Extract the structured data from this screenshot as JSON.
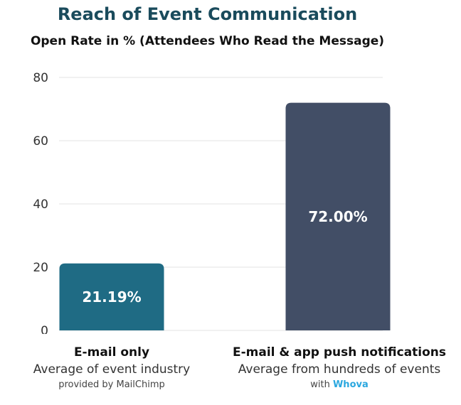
{
  "chart_data": {
    "type": "bar",
    "title": "Reach of Event Communication",
    "subtitle": "Open Rate in % (Attendees Who Read the Message)",
    "xlabel": "",
    "ylabel": "",
    "ylim": [
      0,
      80
    ],
    "yticks": [
      "0",
      "20",
      "40",
      "60",
      "80"
    ],
    "grid": true,
    "categories": [
      "E-mail only",
      "E-mail & app push notifications"
    ],
    "values": [
      21.19,
      72.0
    ],
    "data_labels": [
      "21.19%",
      "72.00%"
    ],
    "colors": [
      "#1f6b84",
      "#424e66"
    ],
    "category_details": [
      {
        "name": "E-mail only",
        "description": "Average of event industry",
        "source": "provided by MailChimp",
        "source_brand": ""
      },
      {
        "name": "E-mail & app push notifications",
        "description": "Average from hundreds of events",
        "source": "with",
        "source_brand": "Whova"
      }
    ]
  },
  "colors": {
    "title": "#1a4b5c",
    "brand": "#2aa7df",
    "grid": "#e3e3e3"
  }
}
